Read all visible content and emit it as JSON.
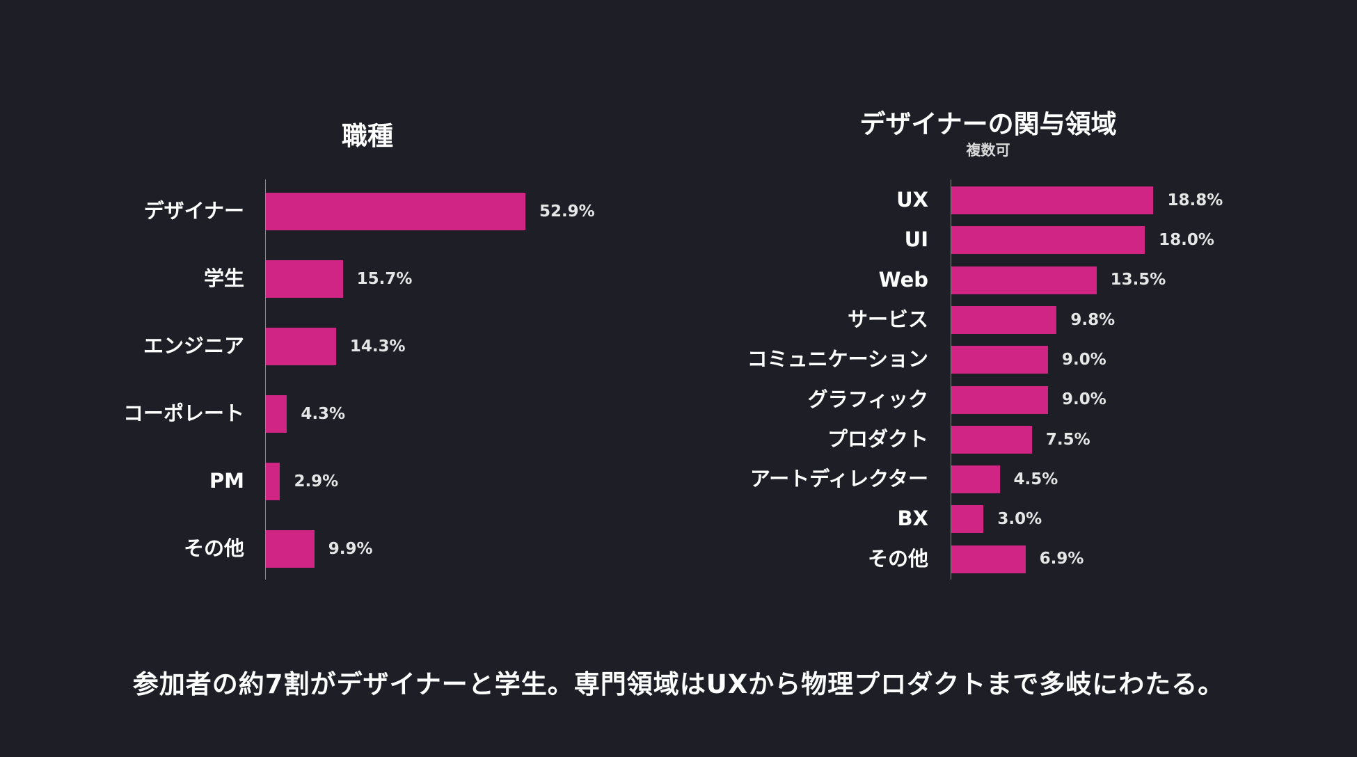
{
  "colors": {
    "background": "#1d1e26",
    "bar": "#d12585",
    "text": "#ffffff"
  },
  "chart_data": [
    {
      "type": "bar",
      "orientation": "horizontal",
      "title": "職種",
      "subtitle": "",
      "categories": [
        "デザイナー",
        "学生",
        "エンジニア",
        "コーポレート",
        "PM",
        "その他"
      ],
      "values": [
        52.9,
        15.7,
        14.3,
        4.3,
        2.9,
        9.9
      ],
      "value_labels": [
        "52.9%",
        "15.7%",
        "14.3%",
        "4.3%",
        "2.9%",
        "9.9%"
      ],
      "unit": "%",
      "grid": false,
      "legend": "none"
    },
    {
      "type": "bar",
      "orientation": "horizontal",
      "title": "デザイナーの関与領域",
      "subtitle": "複数可",
      "categories": [
        "UX",
        "UI",
        "Web",
        "サービス",
        "コミュニケーション",
        "グラフィック",
        "プロダクト",
        "アートディレクター",
        "BX",
        "その他"
      ],
      "values": [
        18.8,
        18.0,
        13.5,
        9.8,
        9.0,
        9.0,
        7.5,
        4.5,
        3.0,
        6.9
      ],
      "value_labels": [
        "18.8%",
        "18.0%",
        "13.5%",
        "9.8%",
        "9.0%",
        "9.0%",
        "7.5%",
        "4.5%",
        "3.0%",
        "6.9%"
      ],
      "unit": "%",
      "grid": false,
      "legend": "none"
    }
  ],
  "caption": "参加者の約7割がデザイナーと学生。専門領域はUXから物理プロダクトまで多岐にわたる。"
}
